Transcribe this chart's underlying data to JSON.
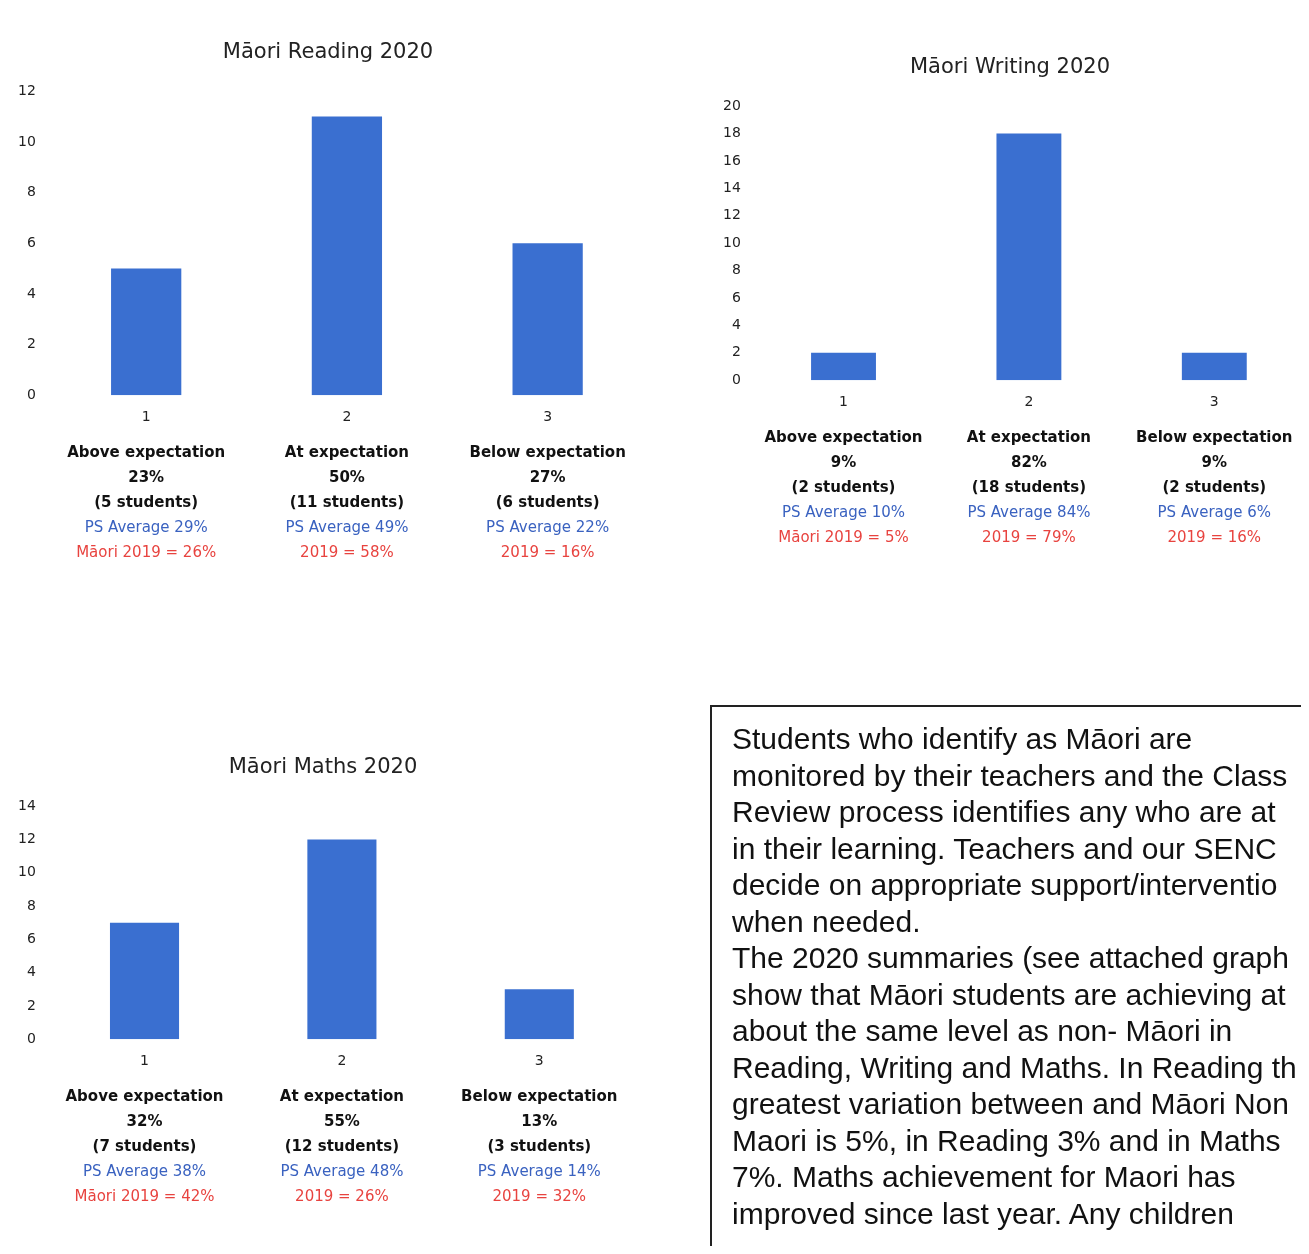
{
  "chart_data": [
    {
      "type": "bar",
      "title": "Māori Reading 2020",
      "categories": [
        "1",
        "2",
        "3"
      ],
      "values": [
        5,
        11,
        6
      ],
      "color": "#3a6fd0",
      "ylim": [
        0,
        12
      ],
      "yticks": [
        0,
        2,
        4,
        6,
        8,
        10,
        12
      ],
      "grid": false,
      "legend": false,
      "annotations": [
        "Above expectation\n23%\n(5 students)\nPS Average 29%\nMāori 2019 = 26%",
        "At expectation\n50%\n(11 students)\nPS Average 49%\n2019 = 58%",
        "Below expectation\n27%\n(6 students)\nPS Average 22%\n2019 = 16%"
      ]
    },
    {
      "type": "bar",
      "title": "Māori Writing 2020",
      "categories": [
        "1",
        "2",
        "3"
      ],
      "values": [
        2,
        18,
        2
      ],
      "color": "#3a6fd0",
      "ylim": [
        0,
        20
      ],
      "yticks": [
        0,
        2,
        4,
        6,
        8,
        10,
        12,
        14,
        16,
        18,
        20
      ],
      "grid": false,
      "legend": false,
      "annotations": [
        "Above expectation\n9%\n(2 students)\nPS Average 10%\nMāori 2019 = 5%",
        "At expectation\n82%\n(18 students)\nPS Average 84%\n2019 = 79%",
        "Below expectation\n9%\n(2 students)\nPS Average 6%\n2019 = 16%"
      ]
    },
    {
      "type": "bar",
      "title": "Māori Maths 2020",
      "categories": [
        "1",
        "2",
        "3"
      ],
      "values": [
        7,
        12,
        3
      ],
      "color": "#3a6fd0",
      "ylim": [
        0,
        14
      ],
      "yticks": [
        0,
        2,
        4,
        6,
        8,
        10,
        12,
        14
      ],
      "grid": false,
      "legend": false,
      "annotations": [
        "Above expectation\n32%\n(7 students)\nPS Average 38%\nMāori 2019 = 42%",
        "At expectation\n55%\n(12 students)\nPS Average 48%\n2019 = 26%",
        "Below expectation\n13%\n(3 students)\nPS Average 14%\n2019 = 32%"
      ]
    },
    {
      "type": "other",
      "annotations": [
        "Students who identify as Māori are",
        "monitored by their teachers and the Class",
        "Review process identifies any who are at",
        "in their learning. Teachers and our SENC",
        "decide on appropriate support/interventio",
        "when needed.",
        "The 2020 summaries (see attached graph",
        "show that Māori students are achieving at",
        "about the same level as non- Māori in",
        "Reading, Writing and Maths. In Reading th",
        "greatest variation between and Māori Non",
        "Maori is 5%, in Reading 3% and in Maths",
        "7%. Maths achievement for Maori has",
        "improved since last year. Any children"
      ]
    }
  ]
}
